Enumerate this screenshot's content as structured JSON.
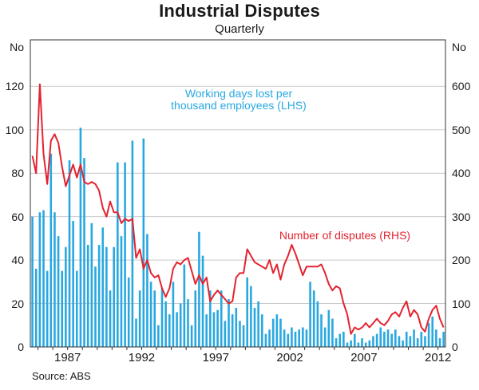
{
  "chart": {
    "title": "Industrial Disputes",
    "subtitle": "Quarterly",
    "source": "Source: ABS",
    "axis_unit_left": "No",
    "axis_unit_right": "No"
  },
  "chart_data": {
    "type": "combo-bar-line",
    "frequency": "quarterly",
    "start_period": "1984Q3",
    "end_period": "2012Q2",
    "grid": true,
    "colors": {
      "bars": "#29a8e0",
      "line": "#e42330",
      "gridline": "#c9c9c9",
      "frame": "#333333"
    },
    "left_axis": {
      "label": "No",
      "min": 0,
      "max": 141,
      "ticks": [
        0,
        20,
        40,
        60,
        80,
        100,
        120
      ]
    },
    "right_axis": {
      "label": "No",
      "min": 0,
      "max": 705,
      "ticks": [
        0,
        100,
        200,
        300,
        400,
        500,
        600
      ]
    },
    "x_axis": {
      "minor_tick_years_start": 1985,
      "minor_tick_years_end": 2012,
      "labeled_years": [
        1987,
        1992,
        1997,
        2002,
        2007,
        2012
      ]
    },
    "series": [
      {
        "name": "Working days lost per thousand employees (LHS)",
        "label_line1": "Working days lost per",
        "label_line2": "thousand employees (LHS)",
        "type": "bar",
        "axis": "left",
        "values": [
          60,
          36,
          62,
          63,
          35,
          89,
          62,
          51,
          35,
          46,
          86,
          58,
          35,
          101,
          87,
          47,
          57,
          37,
          47,
          55,
          46,
          26,
          46,
          85,
          51,
          85,
          32,
          95,
          13,
          26,
          96,
          52,
          30,
          26,
          10,
          27,
          21,
          15,
          30,
          16,
          20,
          38,
          22,
          10,
          26,
          53,
          42,
          15,
          26,
          16,
          17,
          26,
          12,
          22,
          15,
          18,
          12,
          10,
          32,
          28,
          18,
          21,
          15,
          6,
          8,
          13,
          15,
          13,
          8,
          6,
          9,
          7,
          8,
          9,
          8,
          30,
          26,
          21,
          15,
          9,
          17,
          13,
          4,
          6,
          7,
          2,
          3,
          6,
          2,
          4,
          2,
          3,
          5,
          6,
          9,
          7,
          8,
          6,
          8,
          5,
          3,
          7,
          5,
          8,
          4,
          7,
          5,
          11,
          14,
          8,
          4,
          7
        ]
      },
      {
        "name": "Number of disputes (RHS)",
        "label": "Number of disputes (RHS)",
        "type": "line",
        "axis": "right",
        "values": [
          440,
          400,
          605,
          445,
          375,
          475,
          490,
          470,
          415,
          370,
          395,
          420,
          390,
          420,
          380,
          375,
          380,
          375,
          360,
          320,
          300,
          335,
          310,
          310,
          285,
          295,
          290,
          295,
          205,
          225,
          180,
          200,
          170,
          160,
          165,
          135,
          115,
          135,
          180,
          195,
          190,
          200,
          205,
          175,
          145,
          165,
          145,
          160,
          105,
          120,
          130,
          120,
          110,
          100,
          105,
          160,
          170,
          170,
          225,
          210,
          195,
          190,
          185,
          180,
          200,
          170,
          190,
          155,
          190,
          210,
          235,
          215,
          190,
          165,
          185,
          185,
          185,
          185,
          190,
          170,
          145,
          130,
          140,
          135,
          100,
          75,
          30,
          45,
          40,
          45,
          55,
          45,
          55,
          65,
          55,
          50,
          60,
          75,
          80,
          70,
          90,
          105,
          70,
          85,
          75,
          45,
          35,
          65,
          85,
          95,
          65,
          45
        ]
      }
    ]
  }
}
